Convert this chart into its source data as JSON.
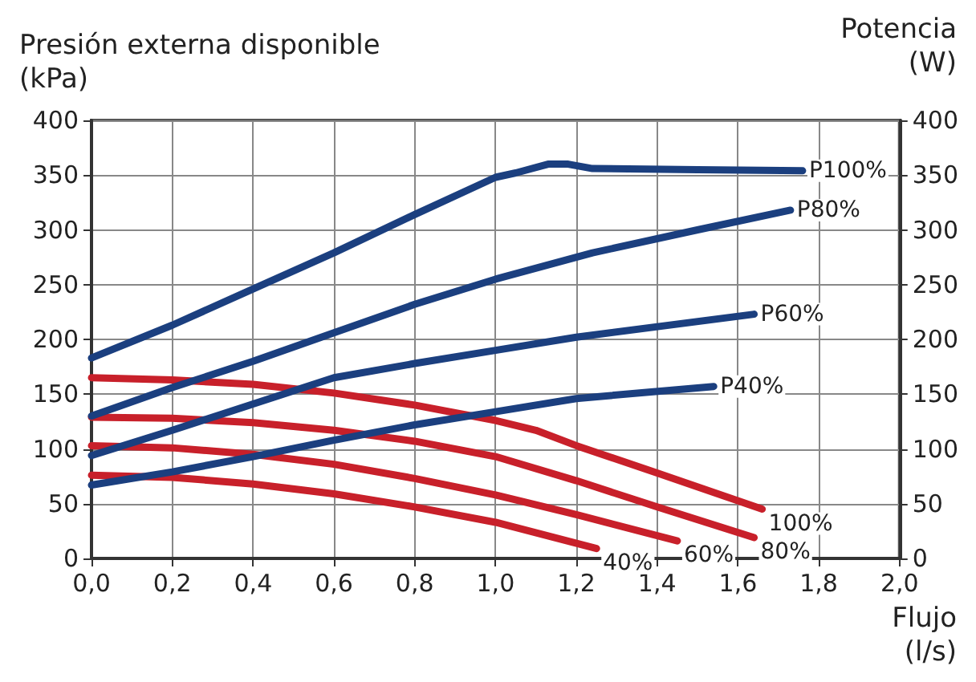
{
  "chart_data": {
    "type": "line",
    "ylabel": "Presión externa disponible\n(kPa)",
    "y2label": "Potencia\n(W)",
    "xlabel": "Flujo\n(l/s)",
    "xlim": [
      0,
      2.0
    ],
    "xticks": [
      {
        "value": 0,
        "label": "0,0"
      },
      {
        "value": 0.2,
        "label": "0,2"
      },
      {
        "value": 0.4,
        "label": "0,4"
      },
      {
        "value": 0.6,
        "label": "0,6"
      },
      {
        "value": 0.8,
        "label": "0,8"
      },
      {
        "value": 1.0,
        "label": "1,0"
      },
      {
        "value": 1.2,
        "label": "1,2"
      },
      {
        "value": 1.4,
        "label": "1,4"
      },
      {
        "value": 1.6,
        "label": "1,6"
      },
      {
        "value": 1.8,
        "label": "1,8"
      },
      {
        "value": 2.0,
        "label": "2,0"
      }
    ],
    "ylim": [
      0,
      400
    ],
    "yticks": [
      0,
      50,
      100,
      150,
      200,
      250,
      300,
      350,
      400
    ],
    "y2lim": [
      0,
      400
    ],
    "y2ticks": [
      0,
      50,
      100,
      150,
      200,
      250,
      300,
      350,
      400
    ],
    "grid": true,
    "series": [
      {
        "name": "P100%",
        "color": "#1b3f7f",
        "axis": "y2",
        "x": [
          0,
          0.2,
          0.4,
          0.6,
          0.8,
          1.0,
          1.05,
          1.13,
          1.18,
          1.24,
          1.5,
          1.76
        ],
        "values": [
          183,
          213,
          246,
          279,
          314,
          348,
          352,
          360,
          360,
          356,
          355,
          354
        ]
      },
      {
        "name": "P80%",
        "color": "#1b3f7f",
        "axis": "y2",
        "x": [
          0,
          0.2,
          0.4,
          0.6,
          0.8,
          1.0,
          1.24,
          1.5,
          1.73
        ],
        "values": [
          130,
          156,
          180,
          206,
          232,
          255,
          279,
          300,
          318
        ]
      },
      {
        "name": "P60%",
        "color": "#1b3f7f",
        "axis": "y2",
        "x": [
          0,
          0.2,
          0.4,
          0.6,
          0.8,
          1.0,
          1.2,
          1.64
        ],
        "values": [
          94,
          117,
          141,
          165,
          178,
          190,
          202,
          223
        ]
      },
      {
        "name": "P40%",
        "color": "#1b3f7f",
        "axis": "y2",
        "x": [
          0,
          0.2,
          0.4,
          0.6,
          0.8,
          1.0,
          1.2,
          1.54
        ],
        "values": [
          67,
          79,
          93,
          108,
          122,
          134,
          146,
          157
        ]
      },
      {
        "name": "100%",
        "color": "#c8202a",
        "x": [
          0,
          0.2,
          0.4,
          0.6,
          0.8,
          1.0,
          1.1,
          1.2,
          1.4,
          1.66
        ],
        "values": [
          165,
          163,
          159,
          151,
          140,
          126,
          117,
          103,
          78,
          45
        ]
      },
      {
        "name": "80%",
        "color": "#c8202a",
        "x": [
          0,
          0.2,
          0.4,
          0.6,
          0.8,
          1.0,
          1.2,
          1.4,
          1.64
        ],
        "values": [
          129,
          128,
          124,
          117,
          107,
          93,
          71,
          47,
          19
        ]
      },
      {
        "name": "60%",
        "color": "#c8202a",
        "x": [
          0,
          0.2,
          0.4,
          0.6,
          0.8,
          1.0,
          1.2,
          1.45
        ],
        "values": [
          103,
          101,
          95,
          86,
          73,
          58,
          40,
          16
        ]
      },
      {
        "name": "40%",
        "color": "#c8202a",
        "x": [
          0,
          0.2,
          0.4,
          0.6,
          0.8,
          1.0,
          1.25
        ],
        "values": [
          76,
          74,
          68,
          59,
          47,
          33,
          9
        ]
      }
    ]
  }
}
